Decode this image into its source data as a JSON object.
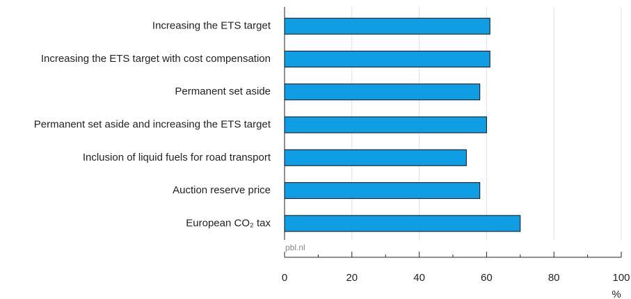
{
  "chart_data": {
    "type": "bar",
    "orientation": "horizontal",
    "categories": [
      "Increasing the ETS target",
      "Increasing the ETS target with cost compensation",
      "Permanent set aside",
      "Permanent set aside and increasing the ETS target",
      "Inclusion of liquid fuels for road transport",
      "Auction reserve price",
      "European CO₂ tax"
    ],
    "values": [
      61,
      61,
      58,
      60,
      54,
      58,
      70
    ],
    "color": "#0f9ee3",
    "xlim": [
      0,
      100
    ],
    "xticks": [
      0,
      20,
      40,
      60,
      80,
      100
    ],
    "minor_xticks": [
      10,
      30,
      50,
      70,
      90
    ],
    "grid": true,
    "xlabel": "%",
    "source": "pbl.nl"
  }
}
